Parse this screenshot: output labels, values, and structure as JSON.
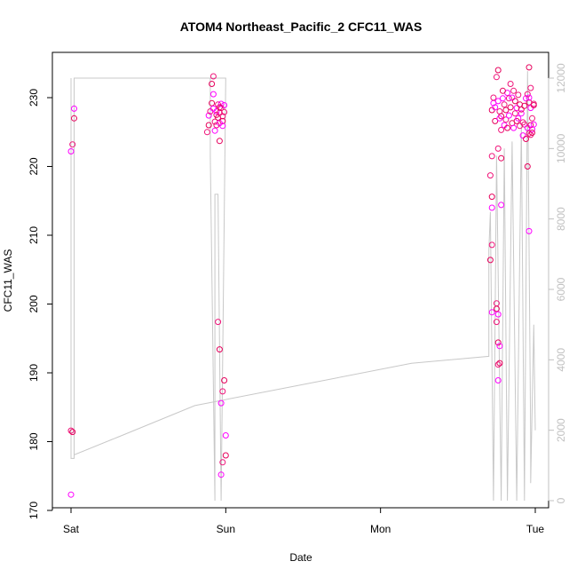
{
  "chart_data": {
    "type": "scatter",
    "title": "ATOM4 Northeast_Pacific_2 CFC11_WAS",
    "xlabel": "Date",
    "ylabel": "CFC11_WAS",
    "x_ticks": [
      "Sat",
      "Sun",
      "Mon",
      "Tue"
    ],
    "x_unit": "days since Saturday 00:00",
    "xlim": [
      -0.1,
      3.1
    ],
    "ylim": [
      170,
      235
    ],
    "y_ticks": [
      170,
      180,
      190,
      200,
      210,
      220,
      230
    ],
    "y2_ticks": [
      0,
      2000,
      4000,
      6000,
      8000,
      10000,
      12000
    ],
    "y2lim": [
      -250,
      12750
    ],
    "grid": false,
    "colors": {
      "points": [
        "#ff00ff",
        "#f0147a",
        "#e6005c"
      ],
      "altitude_line": "#c8c8c8",
      "right_axis": "#c0c0c0",
      "frame": "#000000"
    },
    "series": [
      {
        "name": "CFC11_WAS",
        "points": [
          [
            0.0,
            172.3
          ],
          [
            0.0,
            181.6
          ],
          [
            0.01,
            181.4
          ],
          [
            0.0,
            222.2
          ],
          [
            0.01,
            223.2
          ],
          [
            0.02,
            227.0
          ],
          [
            0.02,
            228.4
          ],
          [
            0.88,
            225.0
          ],
          [
            0.89,
            226.0
          ],
          [
            0.89,
            227.4
          ],
          [
            0.9,
            228.0
          ],
          [
            0.91,
            229.2
          ],
          [
            0.92,
            228.4
          ],
          [
            0.92,
            233.1
          ],
          [
            0.91,
            232.0
          ],
          [
            0.93,
            225.2
          ],
          [
            0.93,
            226.5
          ],
          [
            0.94,
            227.5
          ],
          [
            0.94,
            228.0
          ],
          [
            0.95,
            229.0
          ],
          [
            0.95,
            227.1
          ],
          [
            0.96,
            226.3
          ],
          [
            0.96,
            227.8
          ],
          [
            0.97,
            228.5
          ],
          [
            0.97,
            229.1
          ],
          [
            0.98,
            227.3
          ],
          [
            0.98,
            226.6
          ],
          [
            0.99,
            228.9
          ],
          [
            0.99,
            227.9
          ],
          [
            0.96,
            223.7
          ],
          [
            0.92,
            230.5
          ],
          [
            0.94,
            226.0
          ],
          [
            0.96,
            228.6
          ],
          [
            0.98,
            225.9
          ],
          [
            0.95,
            197.4
          ],
          [
            0.96,
            193.4
          ],
          [
            0.97,
            185.6
          ],
          [
            0.98,
            187.3
          ],
          [
            0.99,
            188.9
          ],
          [
            1.0,
            180.9
          ],
          [
            0.98,
            177.0
          ],
          [
            1.0,
            178.0
          ],
          [
            0.97,
            175.2
          ],
          [
            2.72,
            221.5
          ],
          [
            2.72,
            228.2
          ],
          [
            2.73,
            229.2
          ],
          [
            2.73,
            230.0
          ],
          [
            2.74,
            226.6
          ],
          [
            2.74,
            228.6
          ],
          [
            2.75,
            233.0
          ],
          [
            2.76,
            234.0
          ],
          [
            2.76,
            229.5
          ],
          [
            2.77,
            228.0
          ],
          [
            2.78,
            227.3
          ],
          [
            2.79,
            229.9
          ],
          [
            2.8,
            229.0
          ],
          [
            2.81,
            228.2
          ],
          [
            2.82,
            230.7
          ],
          [
            2.83,
            229.9
          ],
          [
            2.84,
            228.6
          ],
          [
            2.85,
            230.0
          ],
          [
            2.86,
            231.0
          ],
          [
            2.87,
            229.5
          ],
          [
            2.88,
            228.5
          ],
          [
            2.89,
            230.4
          ],
          [
            2.9,
            229.0
          ],
          [
            2.91,
            227.7
          ],
          [
            2.92,
            226.4
          ],
          [
            2.93,
            228.8
          ],
          [
            2.94,
            229.9
          ],
          [
            2.95,
            230.5
          ],
          [
            2.96,
            229.3
          ],
          [
            2.97,
            228.5
          ],
          [
            2.98,
            227.0
          ],
          [
            2.99,
            228.9
          ],
          [
            2.77,
            227.0
          ],
          [
            2.78,
            225.3
          ],
          [
            2.79,
            231.0
          ],
          [
            2.8,
            226.0
          ],
          [
            2.81,
            226.8
          ],
          [
            2.82,
            225.6
          ],
          [
            2.83,
            227.4
          ],
          [
            2.84,
            232.0
          ],
          [
            2.85,
            226.3
          ],
          [
            2.86,
            225.6
          ],
          [
            2.87,
            227.7
          ],
          [
            2.88,
            226.6
          ],
          [
            2.89,
            227.0
          ],
          [
            2.9,
            225.9
          ],
          [
            2.91,
            228.3
          ],
          [
            2.92,
            224.5
          ],
          [
            2.93,
            226.1
          ],
          [
            2.94,
            224.0
          ],
          [
            2.95,
            225.6
          ],
          [
            2.96,
            224.8
          ],
          [
            2.97,
            226.0
          ],
          [
            2.98,
            225.4
          ],
          [
            2.99,
            229.1
          ],
          [
            2.96,
            234.4
          ],
          [
            2.96,
            230.0
          ],
          [
            2.97,
            231.4
          ],
          [
            2.95,
            220.0
          ],
          [
            2.96,
            210.6
          ],
          [
            2.97,
            224.6
          ],
          [
            2.98,
            224.9
          ],
          [
            2.99,
            226.1
          ],
          [
            2.76,
            222.6
          ],
          [
            2.78,
            221.2
          ],
          [
            2.78,
            214.4
          ],
          [
            2.71,
            218.7
          ],
          [
            2.72,
            215.6
          ],
          [
            2.72,
            214.0
          ],
          [
            2.72,
            208.6
          ],
          [
            2.71,
            206.4
          ],
          [
            2.72,
            198.8
          ],
          [
            2.75,
            200.1
          ],
          [
            2.75,
            199.3
          ],
          [
            2.76,
            198.5
          ],
          [
            2.75,
            197.4
          ],
          [
            2.76,
            194.4
          ],
          [
            2.77,
            193.9
          ],
          [
            2.76,
            191.2
          ],
          [
            2.77,
            191.4
          ],
          [
            2.76,
            188.9
          ]
        ]
      },
      {
        "name": "altitude",
        "axis": "right",
        "points": [
          [
            0.0,
            12000
          ],
          [
            0.0,
            1200
          ],
          [
            0.02,
            1200
          ],
          [
            0.02,
            12000
          ],
          [
            0.9,
            12000
          ],
          [
            0.9,
            9800
          ],
          [
            0.93,
            0
          ],
          [
            0.93,
            8700
          ],
          [
            0.95,
            8700
          ],
          [
            0.97,
            0
          ],
          [
            1.0,
            12000
          ],
          [
            0.02,
            12000
          ],
          [
            0.02,
            1300
          ],
          [
            0.3,
            1800
          ],
          [
            0.8,
            2700
          ],
          [
            1.5,
            3300
          ],
          [
            2.2,
            3900
          ],
          [
            2.7,
            4100
          ],
          [
            2.7,
            7100
          ],
          [
            2.71,
            8200
          ],
          [
            2.73,
            0
          ],
          [
            2.75,
            9800
          ],
          [
            2.78,
            0
          ],
          [
            2.8,
            10000
          ],
          [
            2.82,
            0
          ],
          [
            2.85,
            10200
          ],
          [
            2.88,
            0
          ],
          [
            2.91,
            10700
          ],
          [
            2.93,
            0
          ],
          [
            2.95,
            12200
          ],
          [
            2.97,
            1800
          ],
          [
            2.97,
            500
          ],
          [
            2.99,
            5000
          ],
          [
            3.0,
            2000
          ]
        ]
      }
    ]
  }
}
